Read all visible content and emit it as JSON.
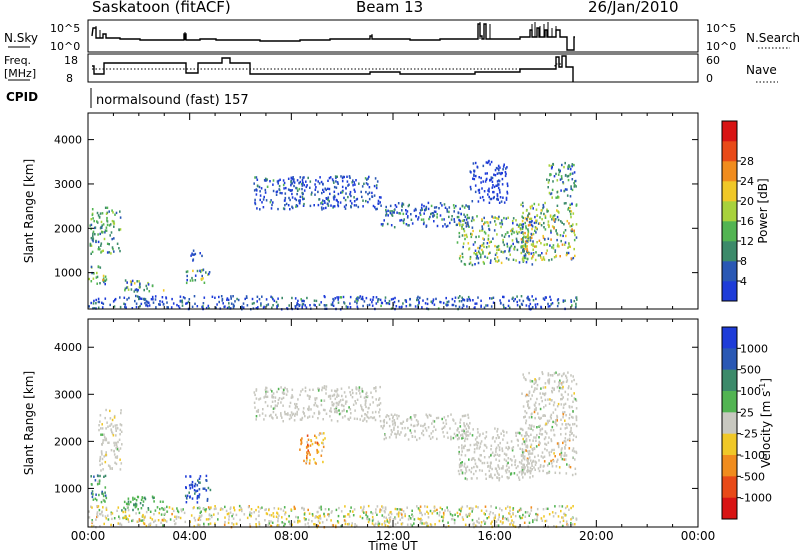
{
  "header": {
    "station": "Saskatoon (fitACF)",
    "beam": "Beam 13",
    "date": "26/Jan/2010"
  },
  "status_panels": {
    "nsky": {
      "label": "N.Sky",
      "ticks_left": [
        "10^5",
        "10^0"
      ],
      "ticks_right": [
        "10^5",
        "10^0"
      ],
      "right_label": "N.Search"
    },
    "freq": {
      "label_line1": "Freq.",
      "label_line2": "[MHz]",
      "ticks_left": [
        "18",
        "8"
      ],
      "ticks_right": [
        "60",
        "0"
      ],
      "right_label": "Nave"
    },
    "cpid": {
      "label": "CPID",
      "text": "normalsound (fast) 157"
    }
  },
  "chart_data": [
    {
      "type": "heatmap",
      "name": "Power",
      "ylabel": "Slant Range [km]",
      "xlim_hours": [
        0,
        24
      ],
      "ylim_km": [
        180,
        4600
      ],
      "yticks": [
        1000,
        2000,
        3000,
        4000
      ],
      "colorbar": {
        "label": "Power [dB]",
        "ticks": [
          "4",
          "8",
          "12",
          "16",
          "20",
          "24",
          "28"
        ],
        "colors": [
          "#1e3cd8",
          "#2a58b4",
          "#3c8a6a",
          "#52b452",
          "#a8d23c",
          "#f0c828",
          "#f08c1e",
          "#e84a18",
          "#d81414"
        ]
      },
      "regions": [
        {
          "t0": 0.05,
          "t1": 1.25,
          "r0": 1450,
          "r1": 2500,
          "weights": [
            0.05,
            0.15,
            0.35,
            0.3,
            0.15
          ]
        },
        {
          "t0": 0.0,
          "t1": 0.7,
          "r0": 750,
          "r1": 1200,
          "weights": [
            0.05,
            0.1,
            0.25,
            0.25,
            0.2,
            0.1,
            0.05
          ]
        },
        {
          "t0": 1.3,
          "t1": 3.0,
          "r0": 600,
          "r1": 850,
          "weights": [
            0.1,
            0.2,
            0.25,
            0.2,
            0.15,
            0.1
          ]
        },
        {
          "t0": 3.8,
          "t1": 4.8,
          "r0": 780,
          "r1": 1100,
          "weights": [
            0.1,
            0.2,
            0.25,
            0.2,
            0.15,
            0.1
          ]
        },
        {
          "t0": 4.0,
          "t1": 4.5,
          "r0": 1300,
          "r1": 1550,
          "weights": [
            0.6,
            0.4
          ]
        },
        {
          "t0": 6.5,
          "t1": 11.5,
          "r0": 2450,
          "r1": 3200,
          "weights": [
            0.5,
            0.35,
            0.1,
            0.05
          ]
        },
        {
          "t0": 11.5,
          "t1": 15.0,
          "r0": 2050,
          "r1": 2600,
          "weights": [
            0.3,
            0.3,
            0.25,
            0.15
          ]
        },
        {
          "t0": 14.5,
          "t1": 17.5,
          "r0": 1200,
          "r1": 2300,
          "weights": [
            0.05,
            0.2,
            0.2,
            0.2,
            0.2,
            0.1,
            0.05
          ]
        },
        {
          "t0": 17.0,
          "t1": 19.2,
          "r0": 1300,
          "r1": 2600,
          "weights": [
            0.05,
            0.1,
            0.2,
            0.2,
            0.2,
            0.15,
            0.1
          ]
        },
        {
          "t0": 18.0,
          "t1": 19.2,
          "r0": 2700,
          "r1": 3500,
          "weights": [
            0.1,
            0.2,
            0.3,
            0.25,
            0.15
          ]
        },
        {
          "t0": 15.0,
          "t1": 16.5,
          "r0": 2600,
          "r1": 3550,
          "weights": [
            0.8,
            0.2
          ]
        },
        {
          "t0": 0.0,
          "t1": 19.2,
          "r0": 200,
          "r1": 500,
          "weights": [
            0.5,
            0.3,
            0.15,
            0.05
          ]
        }
      ]
    },
    {
      "type": "heatmap",
      "name": "Velocity",
      "ylabel": "Slant Range [km]",
      "xlabel": "Time UT",
      "xlim_hours": [
        0,
        24
      ],
      "ylim_km": [
        180,
        4600
      ],
      "yticks": [
        1000,
        2000,
        3000,
        4000
      ],
      "xticks": [
        "00:00",
        "04:00",
        "08:00",
        "12:00",
        "16:00",
        "20:00",
        "00:00"
      ],
      "colorbar": {
        "label": "Velocity [m s^-1]",
        "ticks": [
          "1000",
          "500",
          "100",
          "25",
          "-25",
          "-100",
          "-500",
          "-1000"
        ],
        "colors": [
          "#1e3cd8",
          "#2a58b4",
          "#3c8a6a",
          "#52b452",
          "#c8c8c0",
          "#f0c828",
          "#f08c1e",
          "#e84a18",
          "#d81414"
        ]
      },
      "regions": [
        {
          "t0": 0.4,
          "t1": 1.3,
          "r0": 1400,
          "r1": 2700,
          "weights": [
            0,
            0,
            0,
            0.05,
            0.9,
            0.05
          ]
        },
        {
          "t0": 0.0,
          "t1": 0.7,
          "r0": 700,
          "r1": 1300,
          "weights": [
            0.05,
            0.15,
            0.2,
            0.55,
            0.05
          ]
        },
        {
          "t0": 1.3,
          "t1": 3.0,
          "r0": 550,
          "r1": 850,
          "weights": [
            0,
            0.05,
            0.25,
            0.7
          ]
        },
        {
          "t0": 3.8,
          "t1": 4.8,
          "r0": 700,
          "r1": 1300,
          "weights": [
            0.5,
            0.4,
            0.1
          ]
        },
        {
          "t0": 6.5,
          "t1": 11.5,
          "r0": 2450,
          "r1": 3200,
          "weights": [
            0,
            0,
            0,
            0.05,
            0.95
          ]
        },
        {
          "t0": 8.3,
          "t1": 9.3,
          "r0": 1550,
          "r1": 2200,
          "weights": [
            0,
            0,
            0,
            0,
            0.1,
            0.2,
            0.6,
            0.1
          ]
        },
        {
          "t0": 11.5,
          "t1": 15.0,
          "r0": 2050,
          "r1": 2600,
          "weights": [
            0,
            0,
            0,
            0.05,
            0.95
          ]
        },
        {
          "t0": 14.5,
          "t1": 17.5,
          "r0": 1200,
          "r1": 2300,
          "weights": [
            0,
            0,
            0,
            0.05,
            0.95
          ]
        },
        {
          "t0": 17.0,
          "t1": 19.2,
          "r0": 1300,
          "r1": 3500,
          "weights": [
            0,
            0,
            0,
            0.05,
            0.85,
            0.05,
            0.05
          ]
        },
        {
          "t0": 0.0,
          "t1": 19.2,
          "r0": 200,
          "r1": 650,
          "weights": [
            0,
            0,
            0,
            0.2,
            0.45,
            0.3,
            0.05
          ]
        }
      ]
    }
  ]
}
